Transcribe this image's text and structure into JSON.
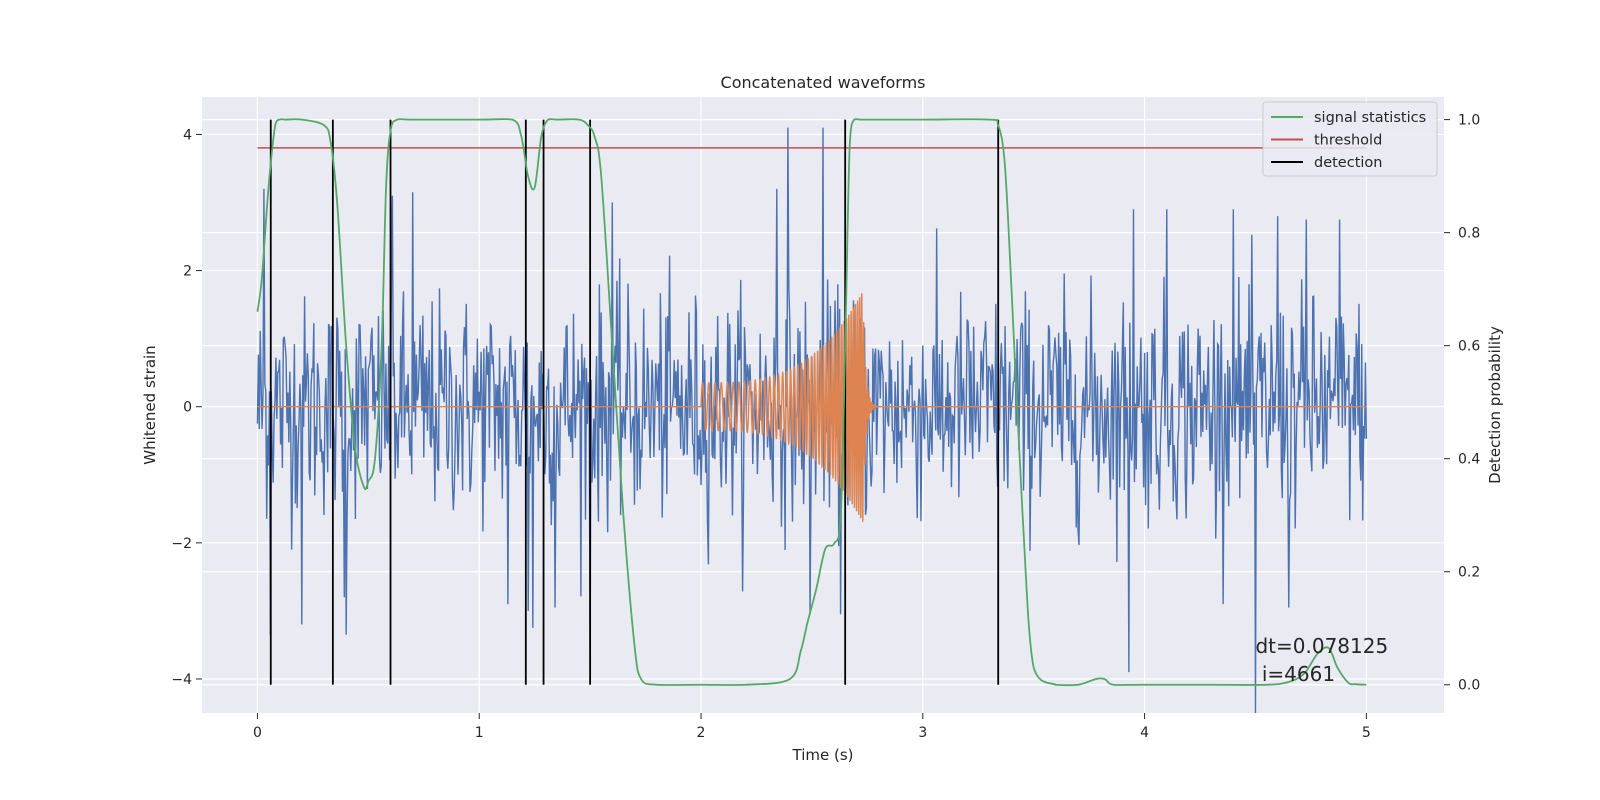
{
  "chart_data": {
    "type": "line",
    "title": "Concatenated waveforms",
    "xlabel": "Time (s)",
    "ylabel": "Whitened strain",
    "ylabel_right": "Detection probability",
    "xlim": [
      -0.25,
      5.35
    ],
    "ylim": [
      -4.5,
      4.55
    ],
    "ylim_right": [
      -0.05,
      1.04
    ],
    "xticks": [
      0,
      1,
      2,
      3,
      4,
      5
    ],
    "yticks": [
      -4,
      -2,
      0,
      2,
      4
    ],
    "yticks_right": [
      0.0,
      0.2,
      0.4,
      0.6,
      0.8,
      1.0
    ],
    "xtick_labels": [
      "0",
      "1",
      "2",
      "3",
      "4",
      "5"
    ],
    "ytick_labels": [
      "−4",
      "−2",
      "0",
      "2",
      "4"
    ],
    "ytick_right_labels": [
      "0.0",
      "0.2",
      "0.4",
      "0.6",
      "0.8",
      "1.0"
    ],
    "grid": true,
    "legend_position": "top-right",
    "legend": [
      "signal statistics",
      "threshold",
      "detection"
    ],
    "annotation": {
      "line1": "dt=0.078125",
      "line2": " i=4661",
      "x": 4.5,
      "y": -4.0
    },
    "series": [
      {
        "name": "whitened strain",
        "axis": "left",
        "color": "#4c72b0",
        "x_range": [
          0,
          5
        ],
        "noise_std": 0.8,
        "sample_count": 1200,
        "spikes": [
          [
            0.03,
            3.2
          ],
          [
            0.06,
            -3.35
          ],
          [
            0.2,
            -3.2
          ],
          [
            0.39,
            -2.8
          ],
          [
            0.4,
            -3.35
          ],
          [
            0.61,
            3.1
          ],
          [
            0.7,
            3.15
          ],
          [
            1.13,
            -2.9
          ],
          [
            1.22,
            -3.0
          ],
          [
            1.24,
            -3.25
          ],
          [
            1.34,
            -2.95
          ],
          [
            1.5,
            -3.7
          ],
          [
            1.6,
            3.0
          ],
          [
            2.34,
            3.2
          ],
          [
            2.39,
            4.1
          ],
          [
            2.49,
            -3.05
          ],
          [
            2.55,
            4.1
          ],
          [
            2.63,
            -3.05
          ],
          [
            3.93,
            -3.9
          ],
          [
            3.95,
            2.9
          ],
          [
            4.1,
            2.9
          ],
          [
            4.4,
            2.9
          ],
          [
            4.5,
            -4.5
          ],
          [
            4.6,
            2.8
          ],
          [
            4.65,
            -2.95
          ],
          [
            4.73,
            2.75
          ],
          [
            4.88,
            2.75
          ]
        ]
      },
      {
        "name": "injected waveform",
        "axis": "left",
        "color": "#dd8452",
        "chirp": {
          "t_start": 2.0,
          "t_merger": 2.73,
          "t_ringdown_end": 2.85,
          "amp_start": 0.35,
          "amp_peak": 1.7,
          "f_start": 35,
          "f_end": 110
        }
      },
      {
        "name": "signal statistics",
        "axis": "right",
        "color": "#55a868",
        "x": [
          0.0,
          0.02,
          0.05,
          0.08,
          0.1,
          0.13,
          0.2,
          0.3,
          0.33,
          0.36,
          0.4,
          0.44,
          0.48,
          0.5,
          0.53,
          0.56,
          0.58,
          0.6,
          0.63,
          0.7,
          1.0,
          1.15,
          1.19,
          1.22,
          1.25,
          1.28,
          1.31,
          1.35,
          1.45,
          1.49,
          1.52,
          1.55,
          1.6,
          1.65,
          1.7,
          1.73,
          1.8,
          2.0,
          2.2,
          2.4,
          2.45,
          2.48,
          2.52,
          2.56,
          2.6,
          2.63,
          2.65,
          2.67,
          2.69,
          2.72,
          2.8,
          3.0,
          3.3,
          3.34,
          3.37,
          3.4,
          3.45,
          3.5,
          3.6,
          3.7,
          3.78,
          3.82,
          3.86,
          4.0,
          4.3,
          4.55,
          4.65,
          4.72,
          4.78,
          4.83,
          4.87,
          4.92,
          4.95,
          5.0
        ],
        "y": [
          0.66,
          0.72,
          0.88,
          0.99,
          1.0,
          1.0,
          1.0,
          0.99,
          0.96,
          0.85,
          0.6,
          0.42,
          0.35,
          0.36,
          0.4,
          0.6,
          0.88,
          0.98,
          1.0,
          1.0,
          1.0,
          1.0,
          0.97,
          0.9,
          0.88,
          0.97,
          1.0,
          1.0,
          1.0,
          0.99,
          0.97,
          0.9,
          0.6,
          0.3,
          0.07,
          0.01,
          0.0,
          0.0,
          0.0,
          0.01,
          0.06,
          0.11,
          0.17,
          0.24,
          0.25,
          0.3,
          0.6,
          0.95,
          1.0,
          1.0,
          1.0,
          1.0,
          1.0,
          0.99,
          0.92,
          0.7,
          0.3,
          0.03,
          0.0,
          0.0,
          0.01,
          0.01,
          0.0,
          0.0,
          0.0,
          0.0,
          0.005,
          0.02,
          0.055,
          0.065,
          0.03,
          0.003,
          0.001,
          0.0
        ]
      },
      {
        "name": "threshold",
        "axis": "right",
        "color": "#c44e52",
        "x": [
          0,
          5
        ],
        "y": [
          0.95,
          0.95
        ]
      },
      {
        "name": "detection",
        "axis": "right",
        "color": "#000000",
        "x": [
          0.06,
          0.34,
          0.6,
          1.21,
          1.29,
          1.5,
          2.65,
          3.34
        ],
        "y_range": [
          0.0,
          1.0
        ]
      }
    ]
  }
}
